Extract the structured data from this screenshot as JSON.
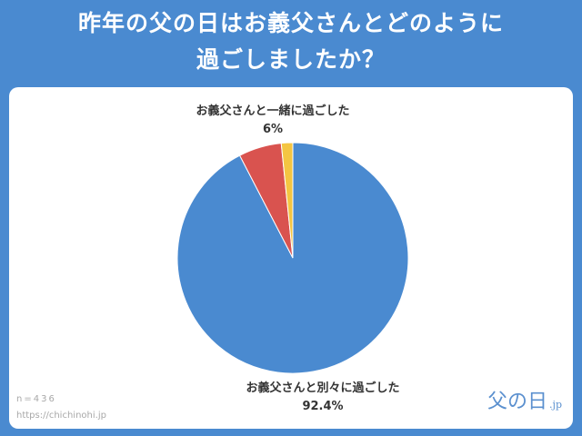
{
  "title": {
    "line1": "昨年の父の日はお義父さんとどのように",
    "line2": "過ごしましたか？"
  },
  "chart_data": {
    "type": "pie",
    "title": "昨年の父の日はお義父さんとどのように過ごしましたか？",
    "slices": [
      {
        "label": "お義父さんと別々に過ごした",
        "value": 92.4,
        "value_label": "92.4%",
        "color": "#4a8ad0"
      },
      {
        "label": "お義父さんと一緒に過ごした",
        "value": 6,
        "value_label": "6%",
        "color": "#d9534f"
      },
      {
        "label": "",
        "value": 1.6,
        "color": "#f4c542"
      }
    ]
  },
  "footer": {
    "sample": "n=436",
    "url": "https://chichinohi.jp"
  },
  "logo": {
    "main": "父の日",
    "suffix": ".jp"
  }
}
